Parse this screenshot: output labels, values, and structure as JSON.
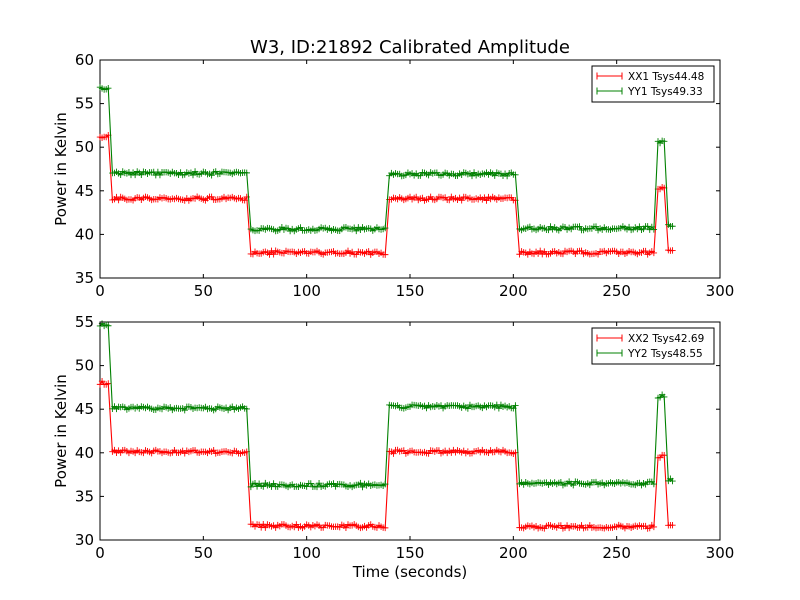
{
  "figure": {
    "title": "W3, ID:21892 Calibrated Amplitude",
    "xlabel": "Time (seconds)"
  },
  "chart_data": [
    {
      "type": "line",
      "title": "W3, ID:21892 Calibrated Amplitude",
      "xlabel": "",
      "ylabel": "Power in Kelvin",
      "xlim": [
        0,
        300
      ],
      "ylim": [
        35,
        60
      ],
      "x_ticks": [
        0,
        50,
        100,
        150,
        200,
        250,
        300
      ],
      "y_ticks": [
        35,
        40,
        45,
        50,
        55,
        60
      ],
      "legend_position": "top-right",
      "grid": false,
      "marker": "plus",
      "sample_step": 1,
      "series": [
        {
          "name": "XX1 Tsys44.48",
          "color": "#ff0000",
          "segments": [
            {
              "x": [
                0,
                4
              ],
              "y": 51.3
            },
            {
              "x": [
                6,
                71
              ],
              "y": 44.1
            },
            {
              "x": [
                73,
                138
              ],
              "y": 37.9
            },
            {
              "x": [
                140,
                201
              ],
              "y": 44.1
            },
            {
              "x": [
                203,
                268
              ],
              "y": 37.9
            },
            {
              "x": [
                270,
                273
              ],
              "y": 45.3
            },
            {
              "x": [
                275,
                277
              ],
              "y": 38.0
            }
          ]
        },
        {
          "name": "YY1 Tsys49.33",
          "color": "#008000",
          "segments": [
            {
              "x": [
                0,
                4
              ],
              "y": 56.8
            },
            {
              "x": [
                6,
                71
              ],
              "y": 47.0
            },
            {
              "x": [
                73,
                138
              ],
              "y": 40.6
            },
            {
              "x": [
                140,
                201
              ],
              "y": 46.9
            },
            {
              "x": [
                203,
                268
              ],
              "y": 40.7
            },
            {
              "x": [
                270,
                273
              ],
              "y": 50.6
            },
            {
              "x": [
                275,
                277
              ],
              "y": 41.0
            }
          ]
        }
      ]
    },
    {
      "type": "line",
      "title": "",
      "xlabel": "Time (seconds)",
      "ylabel": "Power in Kelvin",
      "xlim": [
        0,
        300
      ],
      "ylim": [
        30,
        55
      ],
      "x_ticks": [
        0,
        50,
        100,
        150,
        200,
        250,
        300
      ],
      "y_ticks": [
        30,
        35,
        40,
        45,
        50,
        55
      ],
      "legend_position": "top-right",
      "grid": false,
      "marker": "plus",
      "sample_step": 1,
      "series": [
        {
          "name": "XX2 Tsys42.69",
          "color": "#ff0000",
          "segments": [
            {
              "x": [
                0,
                4
              ],
              "y": 48.0
            },
            {
              "x": [
                6,
                71
              ],
              "y": 40.1
            },
            {
              "x": [
                73,
                138
              ],
              "y": 31.6
            },
            {
              "x": [
                140,
                201
              ],
              "y": 40.1
            },
            {
              "x": [
                203,
                268
              ],
              "y": 31.5
            },
            {
              "x": [
                270,
                273
              ],
              "y": 39.6
            },
            {
              "x": [
                275,
                277
              ],
              "y": 31.6
            }
          ]
        },
        {
          "name": "YY2 Tsys48.55",
          "color": "#008000",
          "segments": [
            {
              "x": [
                0,
                4
              ],
              "y": 54.7
            },
            {
              "x": [
                6,
                71
              ],
              "y": 45.1
            },
            {
              "x": [
                73,
                138
              ],
              "y": 36.3
            },
            {
              "x": [
                140,
                201
              ],
              "y": 45.3
            },
            {
              "x": [
                203,
                268
              ],
              "y": 36.5
            },
            {
              "x": [
                270,
                273
              ],
              "y": 46.5
            },
            {
              "x": [
                275,
                277
              ],
              "y": 36.9
            }
          ]
        }
      ]
    }
  ]
}
